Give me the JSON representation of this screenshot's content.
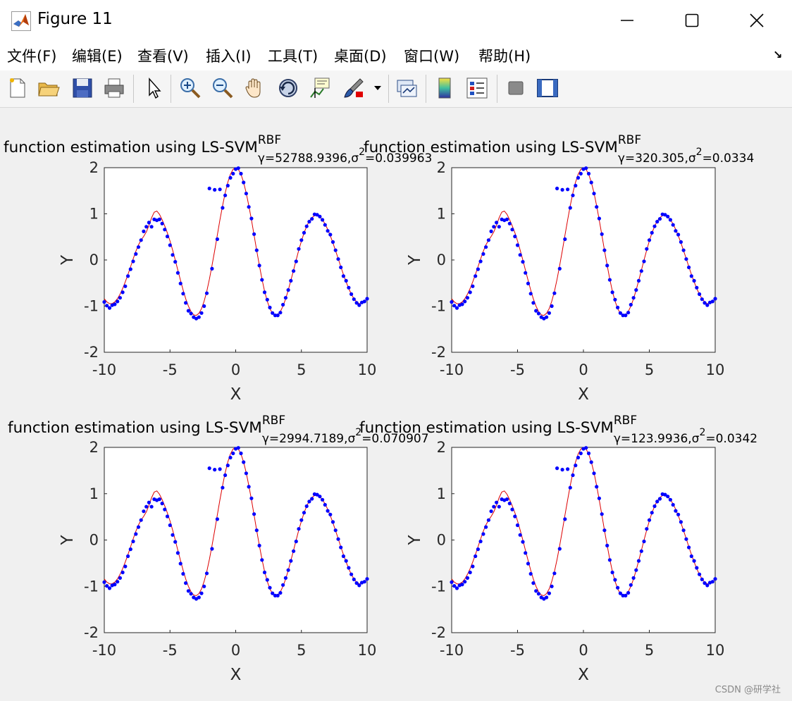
{
  "window": {
    "title": "Figure 11",
    "controls": [
      "minimize",
      "maximize",
      "close"
    ]
  },
  "menu": {
    "items": [
      "文件(F)",
      "编辑(E)",
      "查看(V)",
      "插入(I)",
      "工具(T)",
      "桌面(D)",
      "窗口(W)",
      "帮助(H)"
    ],
    "dock_arrow": "↘"
  },
  "toolbar": {
    "icons": [
      "new-figure-icon",
      "open-file-icon",
      "save-icon",
      "print-icon",
      "pointer-icon",
      "zoom-in-icon",
      "zoom-out-icon",
      "pan-hand-icon",
      "rotate-3d-icon",
      "data-cursor-icon",
      "brush-icon",
      "brush-dropdown-icon",
      "link-plot-icon",
      "colorbar-icon",
      "legend-icon",
      "hide-plot-tools-icon",
      "show-plot-tools-icon"
    ]
  },
  "colors": {
    "data_points": "#0000ff",
    "fitted_curve": "#dd0000",
    "axes_background": "#ffffff",
    "figure_background": "#f0f0f0"
  },
  "chart_data": [
    {
      "type": "scatter",
      "title": "function estimation using  LS-SVM",
      "title_superscript": "RBF",
      "title_subscript": "γ=52788.9396,σ",
      "title_sigma_power": "2",
      "title_subscript_tail": "=0.039963",
      "xlabel": "X",
      "ylabel": "Y",
      "xlim": [
        -10,
        10
      ],
      "ylim": [
        -2,
        2
      ],
      "xticks": [
        "-10",
        "-5",
        "0",
        "5",
        "10"
      ],
      "yticks": [
        "-2",
        "-1",
        "0",
        "1",
        "2"
      ],
      "series": [
        {
          "type": "scatter"
        },
        {
          "type": "line"
        }
      ]
    },
    {
      "type": "scatter",
      "title": "function estimation using  LS-SVM",
      "title_superscript": "RBF",
      "title_subscript": "γ=320.305,σ",
      "title_sigma_power": "2",
      "title_subscript_tail": "=0.0334",
      "xlabel": "X",
      "ylabel": "Y",
      "xlim": [
        -10,
        10
      ],
      "ylim": [
        -2,
        2
      ],
      "xticks": [
        "-10",
        "-5",
        "0",
        "5",
        "10"
      ],
      "yticks": [
        "-2",
        "-1",
        "0",
        "1",
        "2"
      ],
      "series": [
        {
          "type": "scatter"
        },
        {
          "type": "line"
        }
      ]
    },
    {
      "type": "scatter",
      "title": "function estimation using  LS-SVM",
      "title_superscript": "RBF",
      "title_subscript": "γ=2994.7189,σ",
      "title_sigma_power": "2",
      "title_subscript_tail": "=0.070907",
      "xlabel": "X",
      "ylabel": "Y",
      "xlim": [
        -10,
        10
      ],
      "ylim": [
        -2,
        2
      ],
      "xticks": [
        "-10",
        "-5",
        "0",
        "5",
        "10"
      ],
      "yticks": [
        "-2",
        "-1",
        "0",
        "1",
        "2"
      ],
      "series": [
        {
          "type": "scatter"
        },
        {
          "type": "line"
        }
      ]
    },
    {
      "type": "scatter",
      "title": "function estimation using  LS-SVM",
      "title_superscript": "RBF",
      "title_subscript": "γ=123.9936,σ",
      "title_sigma_power": "2",
      "title_subscript_tail": "=0.0342",
      "xlabel": "X",
      "ylabel": "Y",
      "xlim": [
        -10,
        10
      ],
      "ylim": [
        -2,
        2
      ],
      "xticks": [
        "-10",
        "-5",
        "0",
        "5",
        "10"
      ],
      "yticks": [
        "-2",
        "-1",
        "0",
        "1",
        "2"
      ],
      "series": [
        {
          "type": "scatter"
        },
        {
          "type": "line"
        }
      ]
    }
  ],
  "watermark": "CSDN @研学社"
}
